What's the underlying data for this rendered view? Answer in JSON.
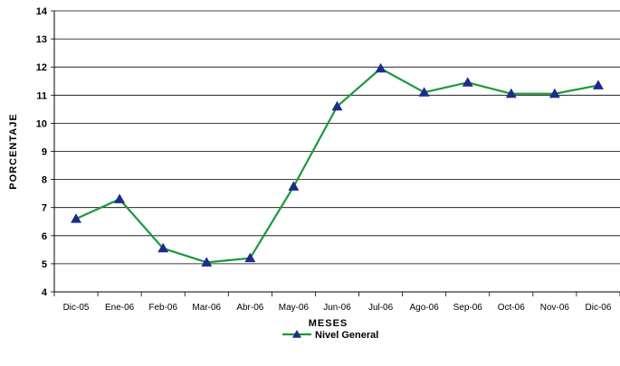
{
  "chart_data": {
    "type": "line",
    "xlabel": "MESES",
    "ylabel": "PORCENTAJE",
    "ylim": [
      4,
      14
    ],
    "yticks": [
      4,
      5,
      6,
      7,
      8,
      9,
      10,
      11,
      12,
      13,
      14
    ],
    "grid": true,
    "legend_position": "bottom-center",
    "categories": [
      "Dic-05",
      "Ene-06",
      "Feb-06",
      "Mar-06",
      "Abr-06",
      "May-06",
      "Jun-06",
      "Jul-06",
      "Ago-06",
      "Sep-06",
      "Oct-06",
      "Nov-06",
      "Dic-06"
    ],
    "series": [
      {
        "name": "Nivel General",
        "values": [
          6.6,
          7.3,
          5.55,
          5.05,
          5.2,
          7.75,
          10.6,
          11.95,
          11.1,
          11.45,
          11.05,
          11.05,
          11.35
        ],
        "line_color": "#1a9a3c",
        "marker_color": "#1f2a8a",
        "marker": "triangle"
      }
    ]
  }
}
